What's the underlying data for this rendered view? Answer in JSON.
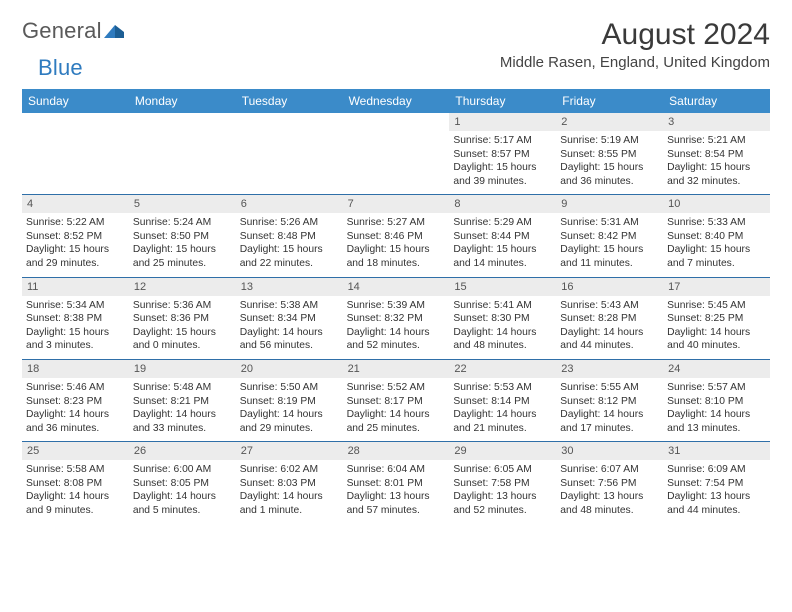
{
  "logo": {
    "word1": "General",
    "word2": "Blue"
  },
  "title": "August 2024",
  "location": "Middle Rasen, England, United Kingdom",
  "header_bg": "#3b8bc9",
  "week_border": "#2f6fa8",
  "daynum_bg": "#ececec",
  "weekdays": [
    "Sunday",
    "Monday",
    "Tuesday",
    "Wednesday",
    "Thursday",
    "Friday",
    "Saturday"
  ],
  "weeks": [
    [
      {
        "n": "",
        "sr": "",
        "ss": "",
        "d1": "",
        "d2": ""
      },
      {
        "n": "",
        "sr": "",
        "ss": "",
        "d1": "",
        "d2": ""
      },
      {
        "n": "",
        "sr": "",
        "ss": "",
        "d1": "",
        "d2": ""
      },
      {
        "n": "",
        "sr": "",
        "ss": "",
        "d1": "",
        "d2": ""
      },
      {
        "n": "1",
        "sr": "Sunrise: 5:17 AM",
        "ss": "Sunset: 8:57 PM",
        "d1": "Daylight: 15 hours",
        "d2": "and 39 minutes."
      },
      {
        "n": "2",
        "sr": "Sunrise: 5:19 AM",
        "ss": "Sunset: 8:55 PM",
        "d1": "Daylight: 15 hours",
        "d2": "and 36 minutes."
      },
      {
        "n": "3",
        "sr": "Sunrise: 5:21 AM",
        "ss": "Sunset: 8:54 PM",
        "d1": "Daylight: 15 hours",
        "d2": "and 32 minutes."
      }
    ],
    [
      {
        "n": "4",
        "sr": "Sunrise: 5:22 AM",
        "ss": "Sunset: 8:52 PM",
        "d1": "Daylight: 15 hours",
        "d2": "and 29 minutes."
      },
      {
        "n": "5",
        "sr": "Sunrise: 5:24 AM",
        "ss": "Sunset: 8:50 PM",
        "d1": "Daylight: 15 hours",
        "d2": "and 25 minutes."
      },
      {
        "n": "6",
        "sr": "Sunrise: 5:26 AM",
        "ss": "Sunset: 8:48 PM",
        "d1": "Daylight: 15 hours",
        "d2": "and 22 minutes."
      },
      {
        "n": "7",
        "sr": "Sunrise: 5:27 AM",
        "ss": "Sunset: 8:46 PM",
        "d1": "Daylight: 15 hours",
        "d2": "and 18 minutes."
      },
      {
        "n": "8",
        "sr": "Sunrise: 5:29 AM",
        "ss": "Sunset: 8:44 PM",
        "d1": "Daylight: 15 hours",
        "d2": "and 14 minutes."
      },
      {
        "n": "9",
        "sr": "Sunrise: 5:31 AM",
        "ss": "Sunset: 8:42 PM",
        "d1": "Daylight: 15 hours",
        "d2": "and 11 minutes."
      },
      {
        "n": "10",
        "sr": "Sunrise: 5:33 AM",
        "ss": "Sunset: 8:40 PM",
        "d1": "Daylight: 15 hours",
        "d2": "and 7 minutes."
      }
    ],
    [
      {
        "n": "11",
        "sr": "Sunrise: 5:34 AM",
        "ss": "Sunset: 8:38 PM",
        "d1": "Daylight: 15 hours",
        "d2": "and 3 minutes."
      },
      {
        "n": "12",
        "sr": "Sunrise: 5:36 AM",
        "ss": "Sunset: 8:36 PM",
        "d1": "Daylight: 15 hours",
        "d2": "and 0 minutes."
      },
      {
        "n": "13",
        "sr": "Sunrise: 5:38 AM",
        "ss": "Sunset: 8:34 PM",
        "d1": "Daylight: 14 hours",
        "d2": "and 56 minutes."
      },
      {
        "n": "14",
        "sr": "Sunrise: 5:39 AM",
        "ss": "Sunset: 8:32 PM",
        "d1": "Daylight: 14 hours",
        "d2": "and 52 minutes."
      },
      {
        "n": "15",
        "sr": "Sunrise: 5:41 AM",
        "ss": "Sunset: 8:30 PM",
        "d1": "Daylight: 14 hours",
        "d2": "and 48 minutes."
      },
      {
        "n": "16",
        "sr": "Sunrise: 5:43 AM",
        "ss": "Sunset: 8:28 PM",
        "d1": "Daylight: 14 hours",
        "d2": "and 44 minutes."
      },
      {
        "n": "17",
        "sr": "Sunrise: 5:45 AM",
        "ss": "Sunset: 8:25 PM",
        "d1": "Daylight: 14 hours",
        "d2": "and 40 minutes."
      }
    ],
    [
      {
        "n": "18",
        "sr": "Sunrise: 5:46 AM",
        "ss": "Sunset: 8:23 PM",
        "d1": "Daylight: 14 hours",
        "d2": "and 36 minutes."
      },
      {
        "n": "19",
        "sr": "Sunrise: 5:48 AM",
        "ss": "Sunset: 8:21 PM",
        "d1": "Daylight: 14 hours",
        "d2": "and 33 minutes."
      },
      {
        "n": "20",
        "sr": "Sunrise: 5:50 AM",
        "ss": "Sunset: 8:19 PM",
        "d1": "Daylight: 14 hours",
        "d2": "and 29 minutes."
      },
      {
        "n": "21",
        "sr": "Sunrise: 5:52 AM",
        "ss": "Sunset: 8:17 PM",
        "d1": "Daylight: 14 hours",
        "d2": "and 25 minutes."
      },
      {
        "n": "22",
        "sr": "Sunrise: 5:53 AM",
        "ss": "Sunset: 8:14 PM",
        "d1": "Daylight: 14 hours",
        "d2": "and 21 minutes."
      },
      {
        "n": "23",
        "sr": "Sunrise: 5:55 AM",
        "ss": "Sunset: 8:12 PM",
        "d1": "Daylight: 14 hours",
        "d2": "and 17 minutes."
      },
      {
        "n": "24",
        "sr": "Sunrise: 5:57 AM",
        "ss": "Sunset: 8:10 PM",
        "d1": "Daylight: 14 hours",
        "d2": "and 13 minutes."
      }
    ],
    [
      {
        "n": "25",
        "sr": "Sunrise: 5:58 AM",
        "ss": "Sunset: 8:08 PM",
        "d1": "Daylight: 14 hours",
        "d2": "and 9 minutes."
      },
      {
        "n": "26",
        "sr": "Sunrise: 6:00 AM",
        "ss": "Sunset: 8:05 PM",
        "d1": "Daylight: 14 hours",
        "d2": "and 5 minutes."
      },
      {
        "n": "27",
        "sr": "Sunrise: 6:02 AM",
        "ss": "Sunset: 8:03 PM",
        "d1": "Daylight: 14 hours",
        "d2": "and 1 minute."
      },
      {
        "n": "28",
        "sr": "Sunrise: 6:04 AM",
        "ss": "Sunset: 8:01 PM",
        "d1": "Daylight: 13 hours",
        "d2": "and 57 minutes."
      },
      {
        "n": "29",
        "sr": "Sunrise: 6:05 AM",
        "ss": "Sunset: 7:58 PM",
        "d1": "Daylight: 13 hours",
        "d2": "and 52 minutes."
      },
      {
        "n": "30",
        "sr": "Sunrise: 6:07 AM",
        "ss": "Sunset: 7:56 PM",
        "d1": "Daylight: 13 hours",
        "d2": "and 48 minutes."
      },
      {
        "n": "31",
        "sr": "Sunrise: 6:09 AM",
        "ss": "Sunset: 7:54 PM",
        "d1": "Daylight: 13 hours",
        "d2": "and 44 minutes."
      }
    ]
  ]
}
